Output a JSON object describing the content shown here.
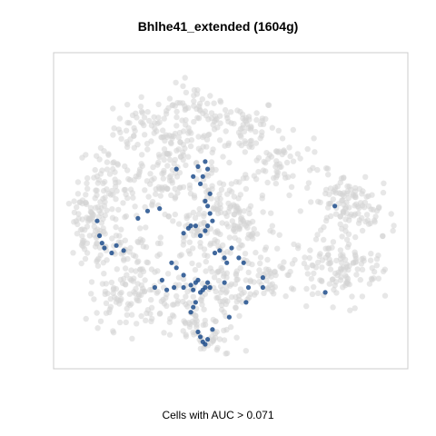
{
  "chart_data": {
    "type": "scatter",
    "title": "Bhlhe41_extended (1604g)",
    "xlabel": "Cells with AUC > 0.071",
    "ylabel": "",
    "axes_visible": false,
    "grid": false,
    "legend": "none",
    "colors": {
      "background_cells": "#d3d3d3",
      "high_auc_cells": "#1f4e8c",
      "frame": "#cccccc"
    },
    "series": [
      {
        "role": "all cells",
        "color": "#d3d3d3",
        "cluster_centers": [
          [
            -20,
            35
          ],
          [
            0,
            40
          ],
          [
            20,
            35
          ],
          [
            35,
            20
          ],
          [
            -35,
            15
          ],
          [
            -15,
            10
          ],
          [
            10,
            5
          ],
          [
            -40,
            -10
          ],
          [
            -25,
            -20
          ],
          [
            0,
            -10
          ],
          [
            20,
            -5
          ],
          [
            30,
            -25
          ],
          [
            10,
            -30
          ],
          [
            -10,
            -35
          ],
          [
            5,
            -50
          ],
          [
            -30,
            -35
          ],
          [
            60,
            5
          ],
          [
            70,
            0
          ],
          [
            55,
            -20
          ],
          [
            65,
            -25
          ],
          [
            -5,
            25
          ],
          [
            -45,
            0
          ]
        ]
      },
      {
        "role": "cells with AUC > 0.071",
        "color": "#1f4e8c",
        "points": [
          [
            -40,
            -9
          ],
          [
            -39,
            -12
          ],
          [
            -38,
            -14
          ],
          [
            -35,
            -16
          ],
          [
            -33,
            -13
          ],
          [
            -30,
            -15
          ],
          [
            -41,
            -3
          ],
          [
            -24,
            -2
          ],
          [
            -20,
            1
          ],
          [
            -15,
            2
          ],
          [
            -17,
            -30
          ],
          [
            -12,
            -31
          ],
          [
            -9,
            -30
          ],
          [
            -5,
            -30
          ],
          [
            -2,
            -29
          ],
          [
            -1,
            -31
          ],
          [
            0,
            -28
          ],
          [
            1,
            -27
          ],
          [
            2,
            -32
          ],
          [
            3,
            -31
          ],
          [
            4,
            -30
          ],
          [
            5,
            -28
          ],
          [
            6,
            -30
          ],
          [
            0,
            -36
          ],
          [
            -1,
            -38
          ],
          [
            -2,
            -40
          ],
          [
            1,
            -48
          ],
          [
            2,
            -50
          ],
          [
            3,
            -52
          ],
          [
            4,
            -53
          ],
          [
            5,
            -51
          ],
          [
            7,
            -47
          ],
          [
            -5,
            -8
          ],
          [
            -3,
            -6
          ],
          [
            -2,
            -5
          ],
          [
            0,
            -5
          ],
          [
            2,
            -9
          ],
          [
            4,
            -7
          ],
          [
            5,
            -5
          ],
          [
            7,
            -3
          ],
          [
            6,
            0
          ],
          [
            5,
            3
          ],
          [
            4,
            5
          ],
          [
            6,
            8
          ],
          [
            2,
            12
          ],
          [
            3,
            15
          ],
          [
            -1,
            15
          ],
          [
            1,
            19
          ],
          [
            4,
            21
          ],
          [
            5,
            18
          ],
          [
            8,
            -16
          ],
          [
            10,
            -15
          ],
          [
            12,
            -18
          ],
          [
            13,
            -20
          ],
          [
            15,
            -14
          ],
          [
            18,
            -18
          ],
          [
            20,
            -20
          ],
          [
            22,
            -30
          ],
          [
            21,
            -36
          ],
          [
            28,
            -26
          ],
          [
            28,
            -30
          ],
          [
            14,
            -42
          ],
          [
            -10,
            -20
          ],
          [
            -8,
            -22
          ],
          [
            12,
            -28
          ],
          [
            -5,
            -25
          ],
          [
            -14,
            -27
          ],
          [
            -8,
            18
          ],
          [
            54,
            -32
          ],
          [
            58,
            3
          ]
        ]
      }
    ]
  },
  "caption": "Cells with AUC > 0.071"
}
